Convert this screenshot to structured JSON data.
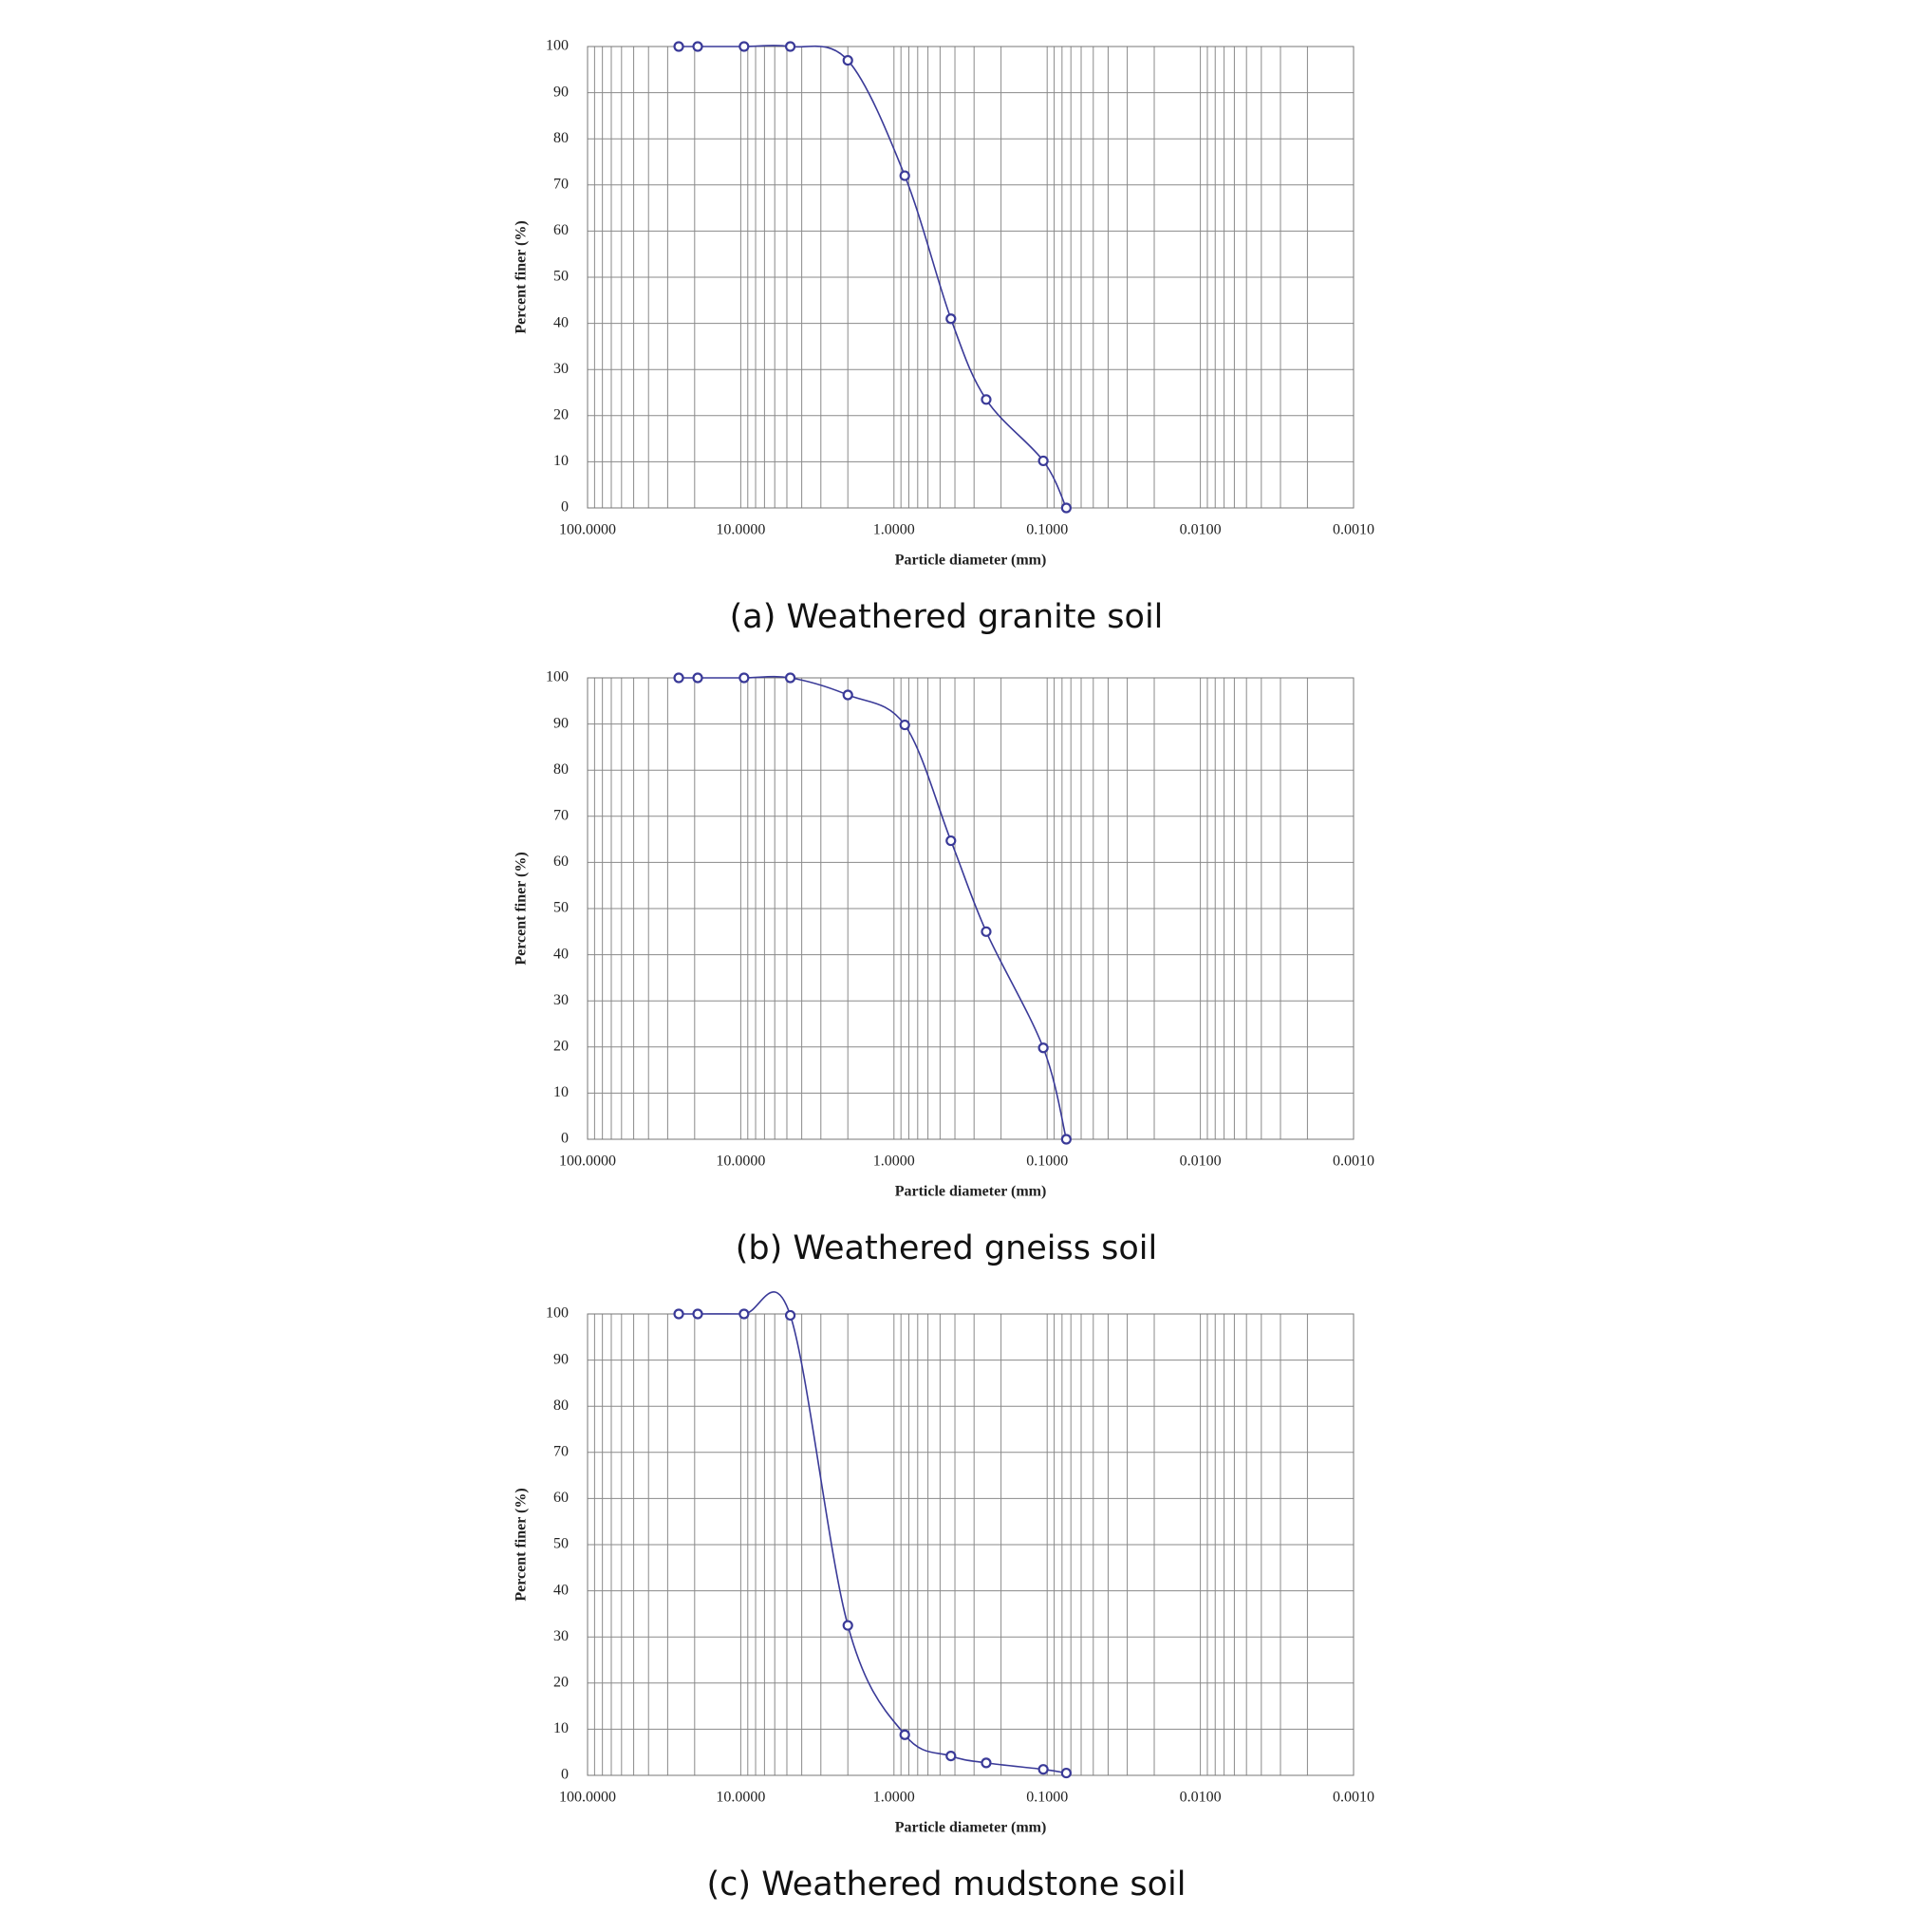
{
  "chart_data": [
    {
      "type": "line",
      "title": "(a) Weathered granite soil",
      "xlabel": "Particle diameter (mm)",
      "ylabel": "Percent  finer (%)",
      "x": [
        25.4,
        19.1,
        9.52,
        4.75,
        2.0,
        0.85,
        0.425,
        0.25,
        0.106,
        0.075
      ],
      "series": [
        {
          "name": "Weathered granite soil",
          "color": "#3a3a98",
          "values": [
            100,
            100,
            100,
            100,
            97,
            72,
            41,
            23.5,
            10.2,
            0
          ]
        }
      ],
      "xlim": [
        100,
        0.001
      ],
      "xscale": "log",
      "xreversed": true,
      "xticks": [
        {
          "value": 100,
          "label": "100.0000"
        },
        {
          "value": 10,
          "label": "10.0000"
        },
        {
          "value": 1,
          "label": "1.0000"
        },
        {
          "value": 0.1,
          "label": "0.1000"
        },
        {
          "value": 0.01,
          "label": "0.0100"
        },
        {
          "value": 0.001,
          "label": "0.0010"
        }
      ],
      "ylim": [
        0,
        100
      ],
      "yticks": [
        0,
        10,
        20,
        30,
        40,
        50,
        60,
        70,
        80,
        90,
        100
      ],
      "grid": true,
      "minor_grid": true
    },
    {
      "type": "line",
      "title": "(b) Weathered gneiss soil",
      "xlabel": "Particle diameter (mm)",
      "ylabel": "Percent  finer (%)",
      "x": [
        25.4,
        19.1,
        9.52,
        4.75,
        2.0,
        0.85,
        0.425,
        0.25,
        0.106,
        0.075
      ],
      "series": [
        {
          "name": "Weathered gneiss soil",
          "color": "#3a3a98",
          "values": [
            100,
            100,
            100,
            100,
            96.3,
            89.8,
            64.7,
            45,
            19.8,
            0
          ]
        }
      ],
      "xlim": [
        100,
        0.001
      ],
      "xscale": "log",
      "xreversed": true,
      "xticks": [
        {
          "value": 100,
          "label": "100.0000"
        },
        {
          "value": 10,
          "label": "10.0000"
        },
        {
          "value": 1,
          "label": "1.0000"
        },
        {
          "value": 0.1,
          "label": "0.1000"
        },
        {
          "value": 0.01,
          "label": "0.0100"
        },
        {
          "value": 0.001,
          "label": "0.0010"
        }
      ],
      "ylim": [
        0,
        100
      ],
      "yticks": [
        0,
        10,
        20,
        30,
        40,
        50,
        60,
        70,
        80,
        90,
        100
      ],
      "grid": true,
      "minor_grid": true
    },
    {
      "type": "line",
      "title": "(c) Weathered mudstone soil",
      "xlabel": "Particle diameter (mm)",
      "ylabel": "Percent  finer (%)",
      "x": [
        25.4,
        19.1,
        9.52,
        4.75,
        2.0,
        0.85,
        0.425,
        0.25,
        0.106,
        0.075
      ],
      "series": [
        {
          "name": "Weathered mudstone soil",
          "color": "#3a3a98",
          "values": [
            100,
            100,
            100,
            99.7,
            32.5,
            8.8,
            4.2,
            2.7,
            1.3,
            0.5
          ]
        }
      ],
      "xlim": [
        100,
        0.001
      ],
      "xscale": "log",
      "xreversed": true,
      "xticks": [
        {
          "value": 100,
          "label": "100.0000"
        },
        {
          "value": 10,
          "label": "10.0000"
        },
        {
          "value": 1,
          "label": "1.0000"
        },
        {
          "value": 0.1,
          "label": "0.1000"
        },
        {
          "value": 0.01,
          "label": "0.0100"
        },
        {
          "value": 0.001,
          "label": "0.0010"
        }
      ],
      "ylim": [
        0,
        100
      ],
      "yticks": [
        0,
        10,
        20,
        30,
        40,
        50,
        60,
        70,
        80,
        90,
        100
      ],
      "grid": true,
      "minor_grid": true
    }
  ]
}
